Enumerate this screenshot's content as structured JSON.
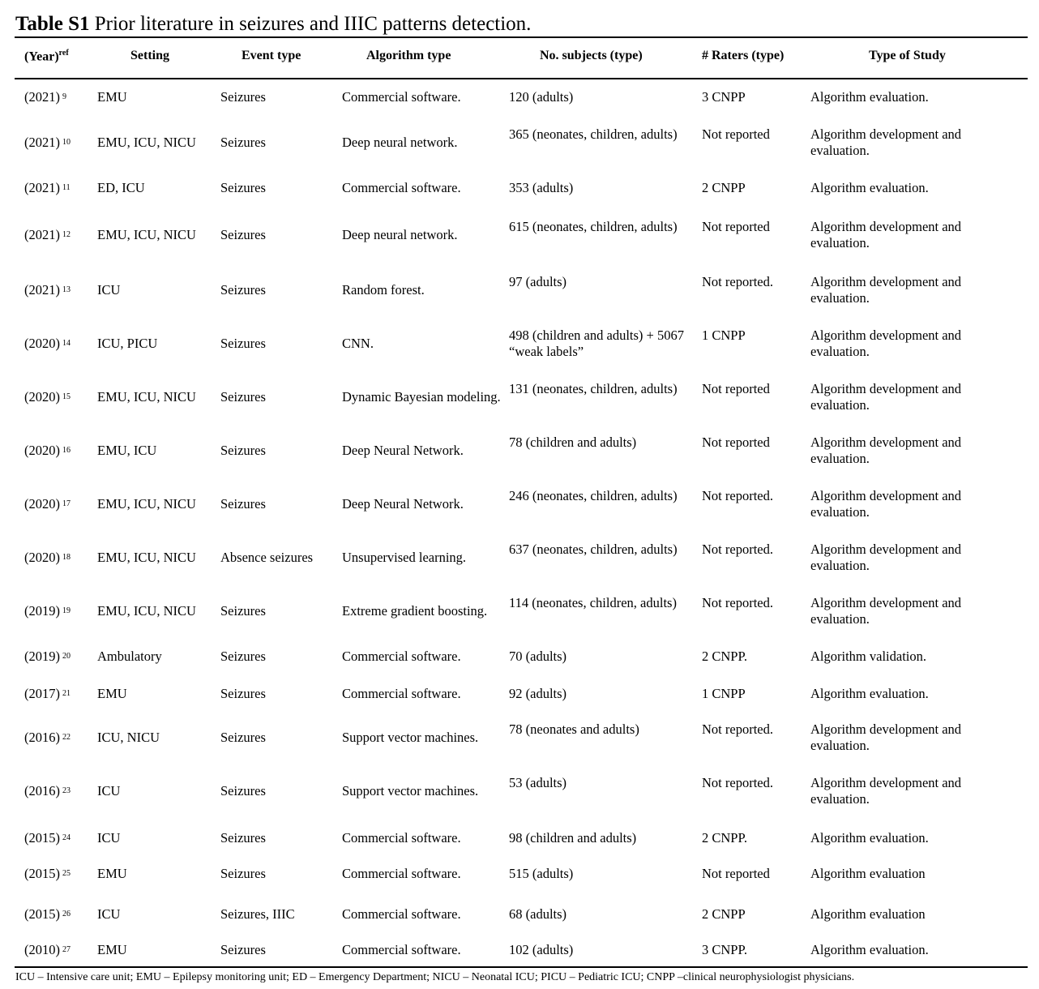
{
  "title": {
    "label": "Table S1",
    "text": " Prior literature in seizures and IIIC patterns detection."
  },
  "columns": [
    "(Year)",
    "Setting",
    "Event type",
    "Algorithm type",
    "No. subjects (type)",
    "# Raters (type)",
    "Type of Study"
  ],
  "year_sup": "ref",
  "rows": [
    {
      "year": "(2021)",
      "ref": "9",
      "setting": "EMU",
      "event": "Seizures",
      "algorithm": "Commercial software.",
      "subjects": "120 (adults)",
      "raters": "3 CNPP",
      "study": "Algorithm evaluation."
    },
    {
      "year": "(2021)",
      "ref": "10",
      "setting": "EMU, ICU, NICU",
      "event": "Seizures",
      "algorithm": "Deep neural network.",
      "subjects": "365 (neonates, children, adults)",
      "raters": "Not reported",
      "study": "Algorithm development and evaluation."
    },
    {
      "year": "(2021)",
      "ref": "11",
      "setting": "ED, ICU",
      "event": "Seizures",
      "algorithm": "Commercial software.",
      "subjects": "353 (adults)",
      "raters": "2 CNPP",
      "study": "Algorithm evaluation."
    },
    {
      "year": "(2021)",
      "ref": "12",
      "setting": "EMU, ICU, NICU",
      "event": "Seizures",
      "algorithm": "Deep neural network.",
      "subjects": "615 (neonates, children, adults)",
      "raters": "Not reported",
      "study": "Algorithm development and evaluation."
    },
    {
      "year": "(2021)",
      "ref": "13",
      "setting": "ICU",
      "event": "Seizures",
      "algorithm": "Random forest.",
      "subjects": "97 (adults)",
      "raters": "Not reported.",
      "study": "Algorithm development and evaluation."
    },
    {
      "year": "(2020)",
      "ref": "14",
      "setting": "ICU, PICU",
      "event": "Seizures",
      "algorithm": "CNN.",
      "subjects": "498 (children and adults) + 5067 “weak labels”",
      "raters": "1 CNPP",
      "study": "Algorithm development and evaluation."
    },
    {
      "year": "(2020)",
      "ref": "15",
      "setting": "EMU, ICU, NICU",
      "event": "Seizures",
      "algorithm": "Dynamic Bayesian modeling.",
      "subjects": "131 (neonates, children, adults)",
      "raters": "Not reported",
      "study": "Algorithm development and evaluation."
    },
    {
      "year": "(2020)",
      "ref": "16",
      "setting": "EMU, ICU",
      "event": "Seizures",
      "algorithm": "Deep Neural Network.",
      "subjects": "78 (children and adults)",
      "raters": "Not reported",
      "study": "Algorithm development and evaluation."
    },
    {
      "year": "(2020)",
      "ref": "17",
      "setting": "EMU, ICU, NICU",
      "event": "Seizures",
      "algorithm": "Deep Neural Network.",
      "subjects": "246 (neonates, children, adults)",
      "raters": "Not reported.",
      "study": "Algorithm development and evaluation."
    },
    {
      "year": "(2020)",
      "ref": "18",
      "setting": "EMU, ICU, NICU",
      "event": "Absence seizures",
      "algorithm": "Unsupervised learning.",
      "subjects": "637 (neonates, children, adults)",
      "raters": "Not reported.",
      "study": "Algorithm development and evaluation."
    },
    {
      "year": "(2019)",
      "ref": "19",
      "setting": "EMU, ICU, NICU",
      "event": "Seizures",
      "algorithm": "Extreme gradient boosting.",
      "subjects": "114 (neonates, children, adults)",
      "raters": "Not reported.",
      "study": "Algorithm development and evaluation."
    },
    {
      "year": "(2019)",
      "ref": "20",
      "setting": "Ambulatory",
      "event": "Seizures",
      "algorithm": "Commercial software.",
      "subjects": "70 (adults)",
      "raters": "2 CNPP.",
      "study": "Algorithm validation."
    },
    {
      "year": "(2017)",
      "ref": "21",
      "setting": "EMU",
      "event": "Seizures",
      "algorithm": "Commercial software.",
      "subjects": "92 (adults)",
      "raters": "1 CNPP",
      "study": "Algorithm evaluation."
    },
    {
      "year": "(2016)",
      "ref": "22",
      "setting": "ICU, NICU",
      "event": "Seizures",
      "algorithm": "Support vector machines.",
      "subjects": "78 (neonates and adults)",
      "raters": "Not reported.",
      "study": "Algorithm development and evaluation."
    },
    {
      "year": "(2016)",
      "ref": "23",
      "setting": "ICU",
      "event": "Seizures",
      "algorithm": "Support vector machines.",
      "subjects": "53 (adults)",
      "raters": "Not reported.",
      "study": "Algorithm development and evaluation."
    },
    {
      "year": "(2015)",
      "ref": "24",
      "setting": "ICU",
      "event": "Seizures",
      "algorithm": "Commercial software.",
      "subjects": "98 (children and adults)",
      "raters": "2 CNPP.",
      "study": "Algorithm evaluation."
    },
    {
      "year": "(2015)",
      "ref": "25",
      "setting": "EMU",
      "event": "Seizures",
      "algorithm": "Commercial software.",
      "subjects": "515 (adults)",
      "raters": "Not reported",
      "study": "Algorithm evaluation"
    },
    {
      "year": "(2015)",
      "ref": "26",
      "setting": "ICU",
      "event": "Seizures, IIIC",
      "algorithm": "Commercial software.",
      "subjects": "68 (adults)",
      "raters": "2 CNPP",
      "study": "Algorithm evaluation"
    },
    {
      "year": "(2010)",
      "ref": "27",
      "setting": "EMU",
      "event": "Seizures",
      "algorithm": "Commercial software.",
      "subjects": "102 (adults)",
      "raters": "3 CNPP.",
      "study": "Algorithm evaluation."
    }
  ],
  "footnote": "ICU – Intensive care unit; EMU – Epilepsy monitoring unit; ED – Emergency Department; NICU – Neonatal ICU; PICU – Pediatric ICU; CNPP –clinical neurophysiologist physicians."
}
